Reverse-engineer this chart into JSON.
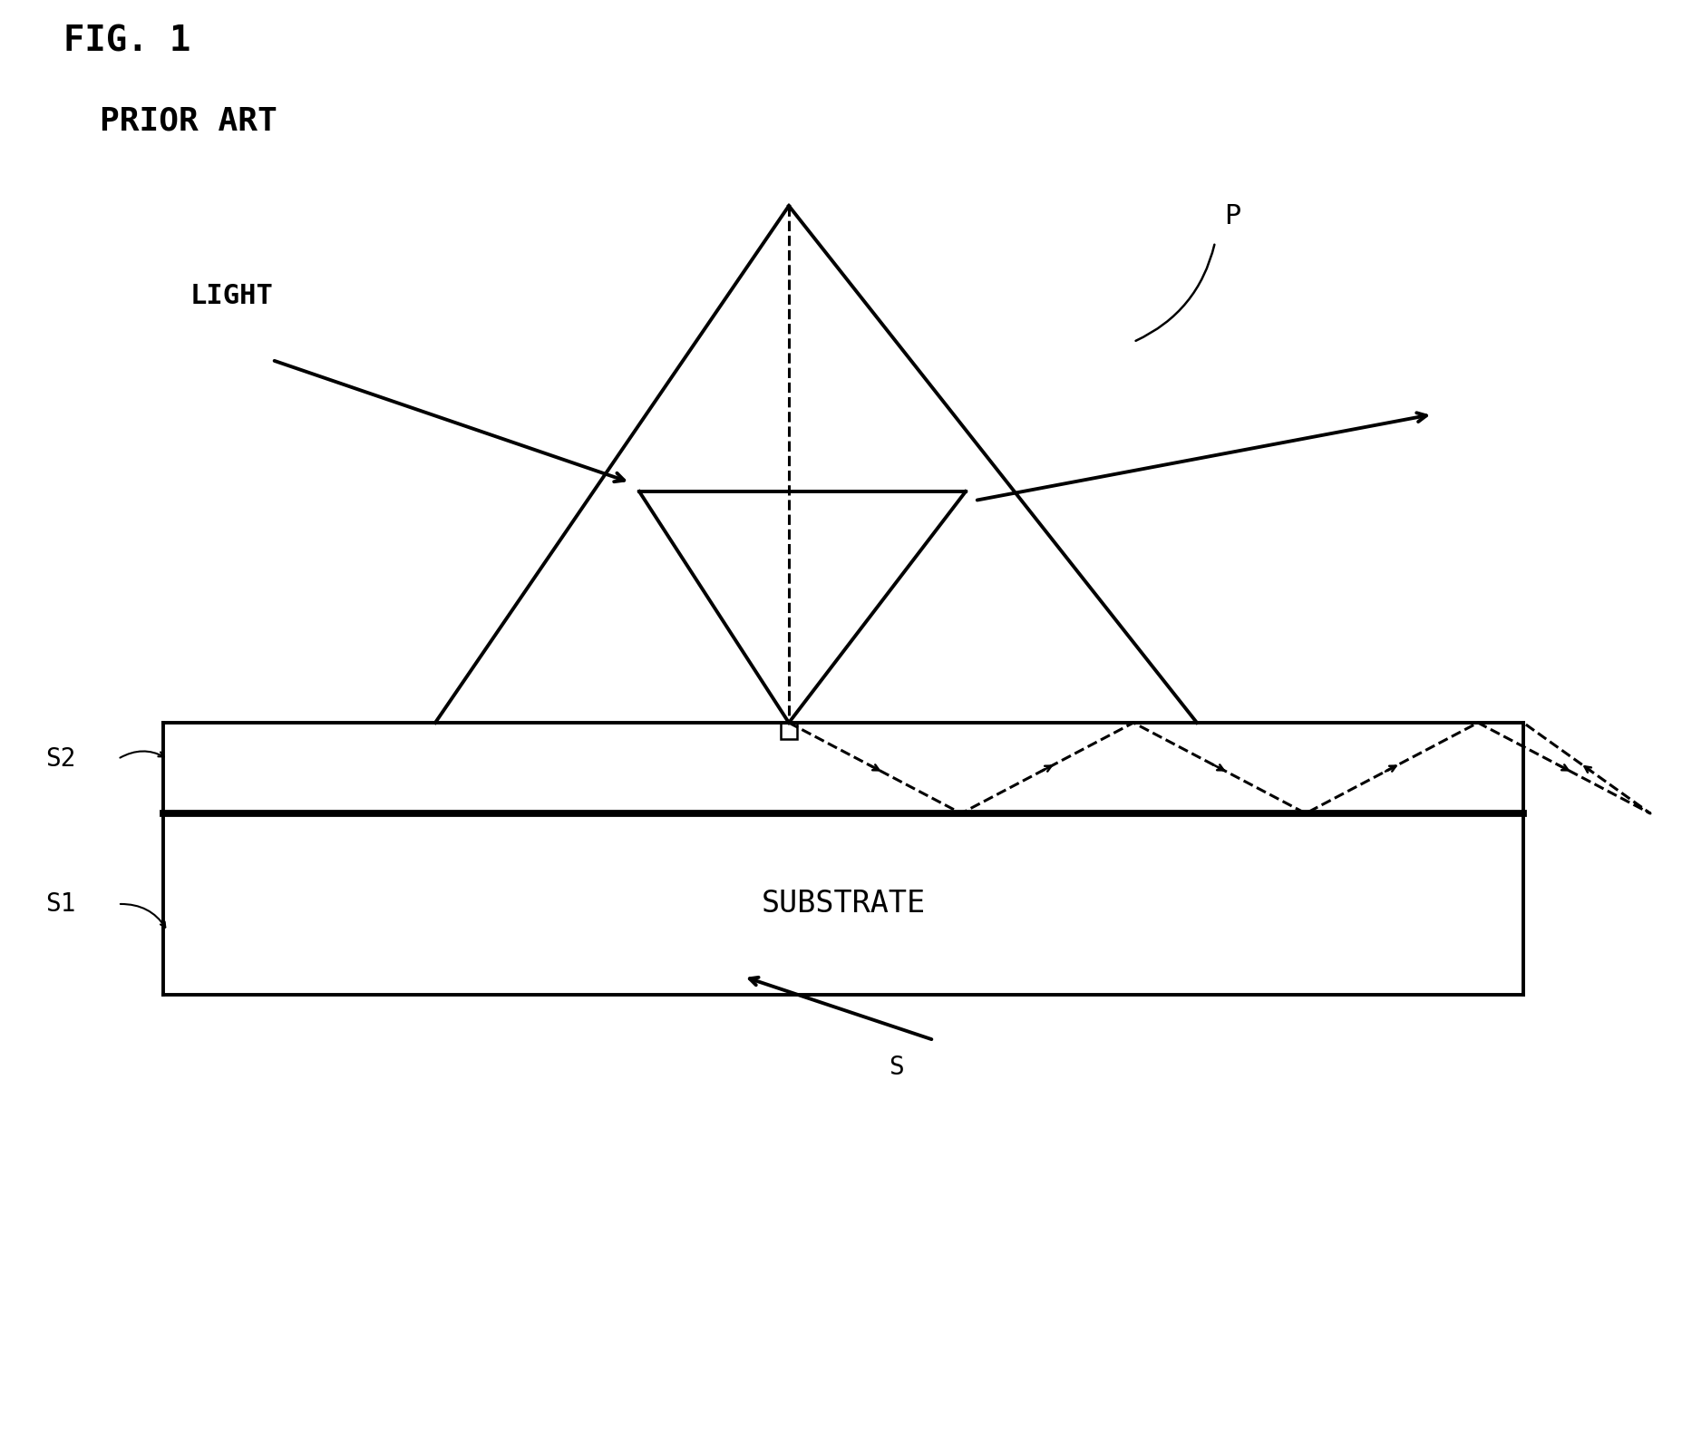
{
  "background_color": "#ffffff",
  "fig_label": "FIG. 1",
  "prior_art_label": "PRIOR ART",
  "label_P": "P",
  "label_LIGHT": "LIGHT",
  "label_SUBSTRATE": "SUBSTRATE",
  "label_S2": "S2",
  "label_S1": "S1",
  "label_S": "S",
  "line_color": "#000000",
  "dashed_color": "#000000",
  "linewidth": 2.8,
  "dashed_linewidth": 2.2,
  "fig_label_fontsize": 28,
  "prior_art_fontsize": 26,
  "label_fontsize": 22,
  "small_fontsize": 20,
  "substrate_fontsize": 24
}
